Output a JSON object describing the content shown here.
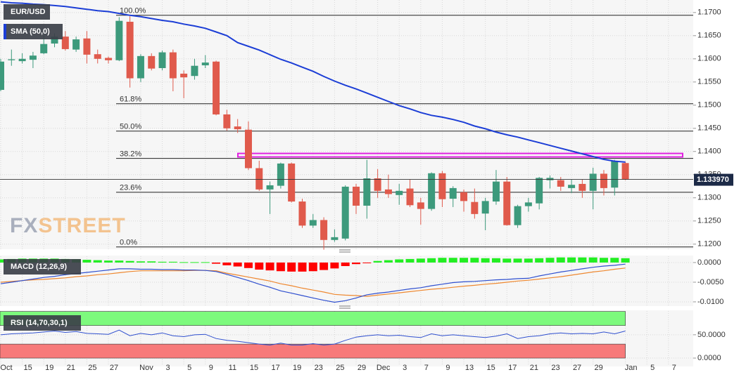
{
  "chart_data": [
    {
      "type": "candlestick",
      "title": "EUR/USD",
      "ylim": [
        1.1189,
        1.1727
      ],
      "yticks": [
        {
          "value": 1.12,
          "label": "1.1200"
        },
        {
          "value": 1.125,
          "label": "1.1250"
        },
        {
          "value": 1.13,
          "label": "1.1300"
        },
        {
          "value": 1.135,
          "label": "1.1350"
        },
        {
          "value": 1.14,
          "label": "1.1400"
        },
        {
          "value": 1.145,
          "label": "1.1450"
        },
        {
          "value": 1.15,
          "label": "1.1500"
        },
        {
          "value": 1.155,
          "label": "1.1550"
        },
        {
          "value": 1.16,
          "label": "1.1600"
        },
        {
          "value": 1.165,
          "label": "1.1650"
        },
        {
          "value": 1.17,
          "label": "1.1700"
        }
      ],
      "up_color": "#3d9a7c",
      "down_color": "#e05a4c",
      "open": [
        1.1533,
        1.1597,
        1.1595,
        1.1598,
        1.1612,
        1.1633,
        1.1648,
        1.162,
        1.1644,
        1.161,
        1.1602,
        1.1597,
        1.168,
        1.1558,
        1.1606,
        1.158,
        1.1614,
        1.1568,
        1.1563,
        1.1586,
        1.1594,
        1.148,
        1.1454,
        1.1447,
        1.1364,
        1.1318,
        1.1326,
        1.1374,
        1.1292,
        1.124,
        1.1252,
        1.1209,
        1.1212,
        1.1324,
        1.1283,
        1.1342,
        1.1318,
        1.1306,
        1.132,
        1.129,
        1.1276,
        1.1353,
        1.1298,
        1.1312,
        1.1291,
        1.1266,
        1.1292,
        1.1335,
        1.1241,
        1.1282,
        1.1288,
        1.1338,
        1.1338,
        1.1321,
        1.133,
        1.1315,
        1.1352,
        1.1322,
        1.1375
      ],
      "high": [
        1.16,
        1.162,
        1.1612,
        1.1615,
        1.165,
        1.1655,
        1.166,
        1.1648,
        1.166,
        1.162,
        1.1605,
        1.169,
        1.1692,
        1.161,
        1.1612,
        1.1618,
        1.162,
        1.1575,
        1.16,
        1.1608,
        1.1596,
        1.149,
        1.147,
        1.1465,
        1.138,
        1.1335,
        1.1376,
        1.1376,
        1.1298,
        1.1265,
        1.1258,
        1.1232,
        1.1327,
        1.133,
        1.1382,
        1.1362,
        1.135,
        1.133,
        1.134,
        1.13,
        1.1355,
        1.1358,
        1.1325,
        1.1318,
        1.132,
        1.13,
        1.136,
        1.1345,
        1.1285,
        1.13,
        1.1345,
        1.1348,
        1.1345,
        1.134,
        1.134,
        1.1365,
        1.136,
        1.1382,
        1.1378
      ],
      "low": [
        1.153,
        1.1585,
        1.159,
        1.158,
        1.161,
        1.1625,
        1.1618,
        1.1615,
        1.159,
        1.159,
        1.159,
        1.1595,
        1.1538,
        1.155,
        1.1575,
        1.1575,
        1.153,
        1.1515,
        1.1555,
        1.158,
        1.1478,
        1.1445,
        1.144,
        1.136,
        1.1315,
        1.1265,
        1.132,
        1.129,
        1.1235,
        1.1235,
        1.1188,
        1.1205,
        1.1208,
        1.1265,
        1.1255,
        1.13,
        1.13,
        1.1285,
        1.128,
        1.1242,
        1.1272,
        1.128,
        1.128,
        1.127,
        1.1255,
        1.123,
        1.1285,
        1.124,
        1.1235,
        1.127,
        1.1275,
        1.132,
        1.1315,
        1.131,
        1.13,
        1.1275,
        1.1305,
        1.1305,
        1.1338
      ],
      "close": [
        1.1594,
        1.1599,
        1.16,
        1.1607,
        1.1632,
        1.1648,
        1.1621,
        1.1642,
        1.1609,
        1.16,
        1.1597,
        1.1682,
        1.1558,
        1.1606,
        1.1579,
        1.1614,
        1.1558,
        1.156,
        1.1585,
        1.1592,
        1.148,
        1.145,
        1.1448,
        1.1364,
        1.1318,
        1.1327,
        1.1374,
        1.1292,
        1.124,
        1.1252,
        1.1209,
        1.1215,
        1.1324,
        1.1283,
        1.1342,
        1.1315,
        1.1308,
        1.1315,
        1.1284,
        1.1276,
        1.1353,
        1.1297,
        1.1321,
        1.1293,
        1.1265,
        1.1293,
        1.1335,
        1.1241,
        1.1282,
        1.129,
        1.1343,
        1.1343,
        1.1324,
        1.1328,
        1.1315,
        1.1352,
        1.1321,
        1.138,
        1.134
      ],
      "overlay": {
        "name": "SMA (50,0)",
        "color": "#1c3ed6",
        "values": [
          1.1723,
          1.1721,
          1.172,
          1.1718,
          1.1717,
          1.1715,
          1.1713,
          1.171,
          1.1707,
          1.1704,
          1.1702,
          1.1698,
          1.1694,
          1.1691,
          1.1687,
          1.1683,
          1.168,
          1.1675,
          1.1671,
          1.1666,
          1.1658,
          1.165,
          1.1635,
          1.1627,
          1.1619,
          1.1609,
          1.1599,
          1.1591,
          1.1582,
          1.1573,
          1.1562,
          1.1552,
          1.1543,
          1.1535,
          1.1526,
          1.1517,
          1.1508,
          1.1499,
          1.1492,
          1.1484,
          1.1478,
          1.1474,
          1.1469,
          1.1463,
          1.1455,
          1.1449,
          1.1442,
          1.1436,
          1.1431,
          1.1425,
          1.1419,
          1.1413,
          1.1407,
          1.1401,
          1.1395,
          1.1389,
          1.1383,
          1.1379,
          1.1377
        ]
      },
      "fib": [
        {
          "label": "100.0%",
          "value": 1.1694
        },
        {
          "label": "61.8%",
          "value": 1.1503
        },
        {
          "label": "50.0%",
          "value": 1.1444
        },
        {
          "label": "38.2%",
          "value": 1.1385
        },
        {
          "label": "23.6%",
          "value": 1.1312
        },
        {
          "label": "0.0%",
          "value": 1.1194
        }
      ],
      "resistance": {
        "value": 1.1392,
        "color": "#e020e0"
      },
      "last_price": {
        "value": 1.13397,
        "label": "1.133970"
      },
      "watermark": [
        "FX",
        "STREET"
      ]
    },
    {
      "type": "macd",
      "title": "MACD (12,26,9)",
      "ylim": [
        -0.0109,
        0.0016
      ],
      "yticks": [
        {
          "value": 0,
          "label": "0.0000"
        },
        {
          "value": -0.005,
          "label": "-0.0050"
        },
        {
          "value": -0.01,
          "label": "-0.0100"
        }
      ],
      "histogram": {
        "up_color": "#22ee22",
        "down_color": "#ff0000",
        "values": [
          0.0008,
          0.0009,
          0.001,
          0.001,
          0.001,
          0.001,
          0.0009,
          0.0008,
          0.0007,
          0.0006,
          0.0005,
          0.0005,
          0.0004,
          0.0003,
          0.0003,
          0.0002,
          0.0002,
          0.0001,
          0.0001,
          0.0001,
          -0.0003,
          -0.0007,
          -0.001,
          -0.0014,
          -0.0018,
          -0.002,
          -0.0022,
          -0.0023,
          -0.0023,
          -0.0022,
          -0.0019,
          -0.0015,
          -0.0009,
          -0.0004,
          -0.0001,
          0.0004,
          0.0006,
          0.0008,
          0.0009,
          0.001,
          0.0011,
          0.0012,
          0.0012,
          0.0012,
          0.0012,
          0.0011,
          0.0011,
          0.001,
          0.001,
          0.001,
          0.0011,
          0.0012,
          0.0013,
          0.0013,
          0.0013,
          0.0013,
          0.0012,
          0.0012,
          0.0011
        ]
      },
      "macd": {
        "color": "#2f4fcf",
        "values": [
          -0.0054,
          -0.005,
          -0.0046,
          -0.0042,
          -0.0038,
          -0.0035,
          -0.0031,
          -0.0028,
          -0.0025,
          -0.0022,
          -0.0019,
          -0.0016,
          -0.0016,
          -0.0017,
          -0.0017,
          -0.0018,
          -0.0018,
          -0.0019,
          -0.0019,
          -0.002,
          -0.0023,
          -0.003,
          -0.0038,
          -0.0046,
          -0.0055,
          -0.0063,
          -0.0072,
          -0.0078,
          -0.0084,
          -0.009,
          -0.0096,
          -0.0101,
          -0.0097,
          -0.009,
          -0.0082,
          -0.0078,
          -0.0075,
          -0.0071,
          -0.0067,
          -0.0064,
          -0.0059,
          -0.0055,
          -0.0051,
          -0.0049,
          -0.0048,
          -0.0046,
          -0.0044,
          -0.0043,
          -0.0041,
          -0.004,
          -0.0034,
          -0.0029,
          -0.0024,
          -0.002,
          -0.0016,
          -0.0012,
          -0.0009,
          -0.0007,
          -0.0004
        ]
      },
      "signal": {
        "color": "#ee8830",
        "values": [
          -0.005,
          -0.0048,
          -0.0046,
          -0.0044,
          -0.0043,
          -0.0041,
          -0.0039,
          -0.0036,
          -0.0034,
          -0.0031,
          -0.0029,
          -0.0026,
          -0.0023,
          -0.0021,
          -0.0021,
          -0.0021,
          -0.0021,
          -0.0021,
          -0.002,
          -0.002,
          -0.0021,
          -0.0027,
          -0.0032,
          -0.0037,
          -0.0042,
          -0.0047,
          -0.0054,
          -0.0059,
          -0.0065,
          -0.007,
          -0.0075,
          -0.0081,
          -0.0083,
          -0.0084,
          -0.0086,
          -0.0083,
          -0.008,
          -0.0077,
          -0.0074,
          -0.0071,
          -0.0068,
          -0.0066,
          -0.0063,
          -0.006,
          -0.0058,
          -0.0055,
          -0.0053,
          -0.005,
          -0.0047,
          -0.0045,
          -0.0042,
          -0.0039,
          -0.0036,
          -0.0032,
          -0.0028,
          -0.0024,
          -0.0021,
          -0.0017,
          -0.0014
        ]
      }
    },
    {
      "type": "rsi",
      "title": "RSI (14,70,30,1)",
      "ylim": [
        -15,
        101
      ],
      "yticks": [
        {
          "value": 0,
          "label": "0.0000"
        },
        {
          "value": 50,
          "label": "50.0000"
        }
      ],
      "upper_band": [
        70,
        100
      ],
      "upper_color": "#7dfa7d",
      "lower_band": [
        0,
        30
      ],
      "lower_color": "#f77a7a",
      "color": "#2f4fcf",
      "values": [
        50,
        52,
        53,
        54,
        56,
        58,
        55,
        57,
        53,
        52,
        51,
        60,
        48,
        53,
        50,
        54,
        48,
        46,
        50,
        51,
        42,
        38,
        36,
        33,
        30,
        28,
        32,
        28,
        28,
        31,
        28,
        30,
        38,
        45,
        48,
        50,
        48,
        49,
        46,
        44,
        52,
        48,
        50,
        48,
        46,
        44,
        47,
        52,
        42,
        46,
        48,
        52,
        54,
        52,
        53,
        52,
        56,
        52,
        58
      ],
      "xlim": [
        -0.065,
        64.3
      ],
      "xticks": [
        {
          "value": 0,
          "label": "Oct"
        },
        {
          "value": 2,
          "label": "15"
        },
        {
          "value": 4,
          "label": "19"
        },
        {
          "value": 6,
          "label": "21"
        },
        {
          "value": 8,
          "label": "25"
        },
        {
          "value": 10,
          "label": "27"
        },
        {
          "value": 13,
          "label": "Nov"
        },
        {
          "value": 15,
          "label": "3"
        },
        {
          "value": 17,
          "label": "5"
        },
        {
          "value": 19,
          "label": "9"
        },
        {
          "value": 21,
          "label": "11"
        },
        {
          "value": 23,
          "label": "15"
        },
        {
          "value": 25,
          "label": "17"
        },
        {
          "value": 27,
          "label": "19"
        },
        {
          "value": 29,
          "label": "23"
        },
        {
          "value": 31,
          "label": "25"
        },
        {
          "value": 33,
          "label": "29"
        },
        {
          "value": 35,
          "label": "Dec"
        },
        {
          "value": 37,
          "label": "3"
        },
        {
          "value": 39,
          "label": "7"
        },
        {
          "value": 41,
          "label": "9"
        },
        {
          "value": 43,
          "label": "13"
        },
        {
          "value": 45,
          "label": "15"
        },
        {
          "value": 47,
          "label": "17"
        },
        {
          "value": 49,
          "label": "21"
        },
        {
          "value": 51,
          "label": "23"
        },
        {
          "value": 53,
          "label": "27"
        },
        {
          "value": 55,
          "label": "29"
        },
        {
          "value": 58,
          "label": "Jan"
        },
        {
          "value": 60,
          "label": "5"
        },
        {
          "value": 62,
          "label": "7"
        }
      ]
    }
  ]
}
